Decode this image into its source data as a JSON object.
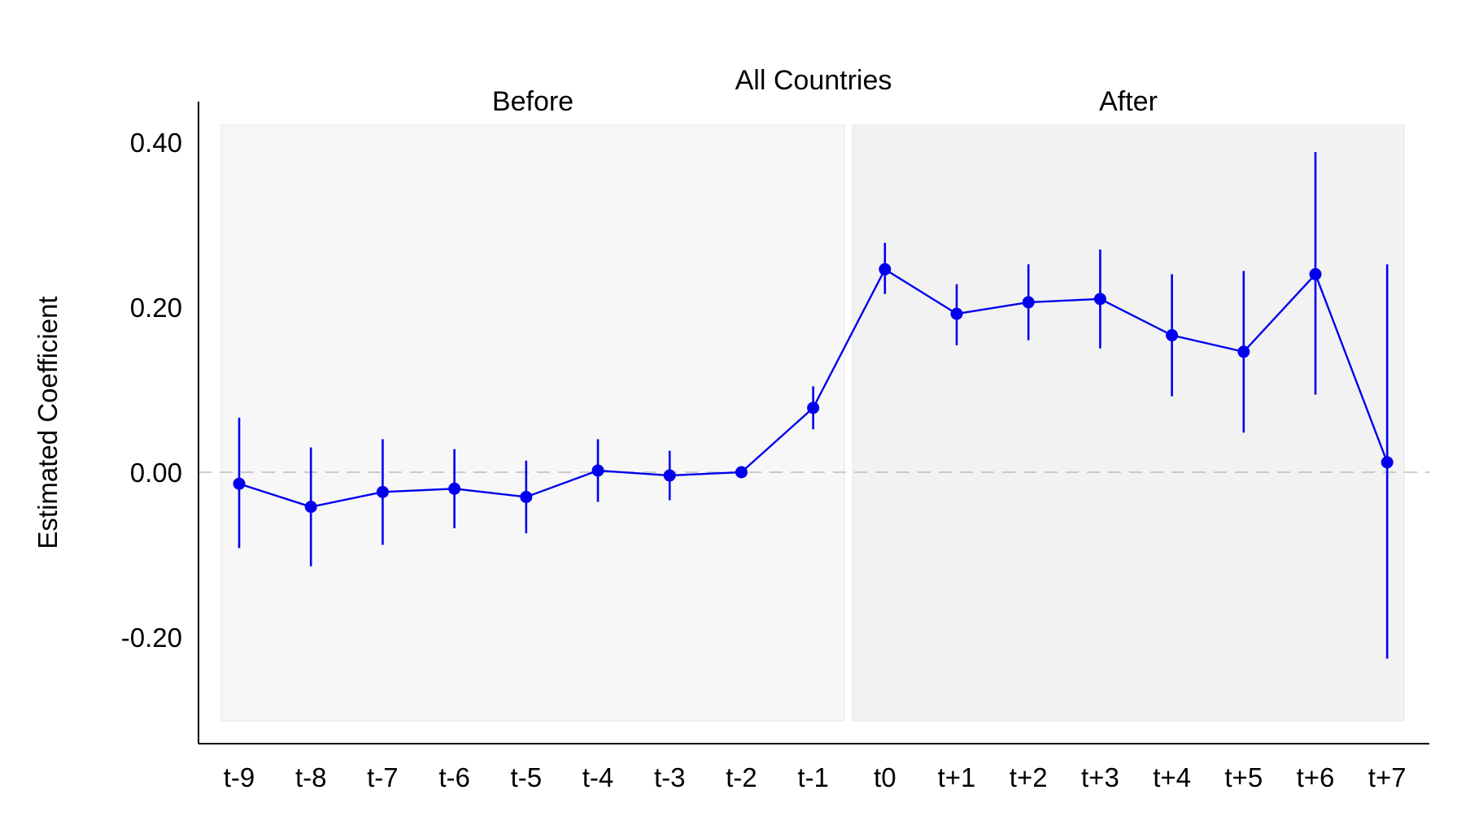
{
  "chart_data": {
    "type": "line",
    "title": "All Countries",
    "xlabel": "",
    "ylabel": "Estimated Coefficient",
    "regions": [
      {
        "label": "Before",
        "from": "t-9",
        "to": "t-1",
        "color": "#f7f7f7"
      },
      {
        "label": "After",
        "from": "t0",
        "to": "t+7",
        "color": "#f2f2f2"
      }
    ],
    "categories": [
      "t-9",
      "t-8",
      "t-7",
      "t-6",
      "t-5",
      "t-4",
      "t-3",
      "t-2",
      "t-1",
      "t0",
      "t+1",
      "t+2",
      "t+3",
      "t+4",
      "t+5",
      "t+6",
      "t+7"
    ],
    "series": [
      {
        "values": [
          -0.014,
          -0.042,
          -0.024,
          -0.02,
          -0.03,
          0.002,
          -0.004,
          0.0,
          0.078,
          0.246,
          0.192,
          0.206,
          0.21,
          0.166,
          0.146,
          0.24,
          0.012
        ],
        "ci_low": [
          -0.092,
          -0.114,
          -0.088,
          -0.068,
          -0.074,
          -0.036,
          -0.034,
          0.0,
          0.052,
          0.216,
          0.154,
          0.16,
          0.15,
          0.092,
          0.048,
          0.094,
          -0.226
        ],
        "ci_high": [
          0.066,
          0.03,
          0.04,
          0.028,
          0.014,
          0.04,
          0.026,
          0.0,
          0.104,
          0.278,
          0.228,
          0.252,
          0.27,
          0.24,
          0.244,
          0.388,
          0.252
        ],
        "color": "#0000ee"
      }
    ],
    "yticks": [
      -0.2,
      0.0,
      0.2,
      0.4
    ],
    "ytick_labels": [
      "-0.20",
      "0.00",
      "0.20",
      "0.40"
    ],
    "ylim": [
      -0.33,
      0.45
    ],
    "reference_line": {
      "y": 0,
      "style": "dashed",
      "color": "#bbbbbb"
    },
    "grid": false,
    "legend": "none"
  }
}
